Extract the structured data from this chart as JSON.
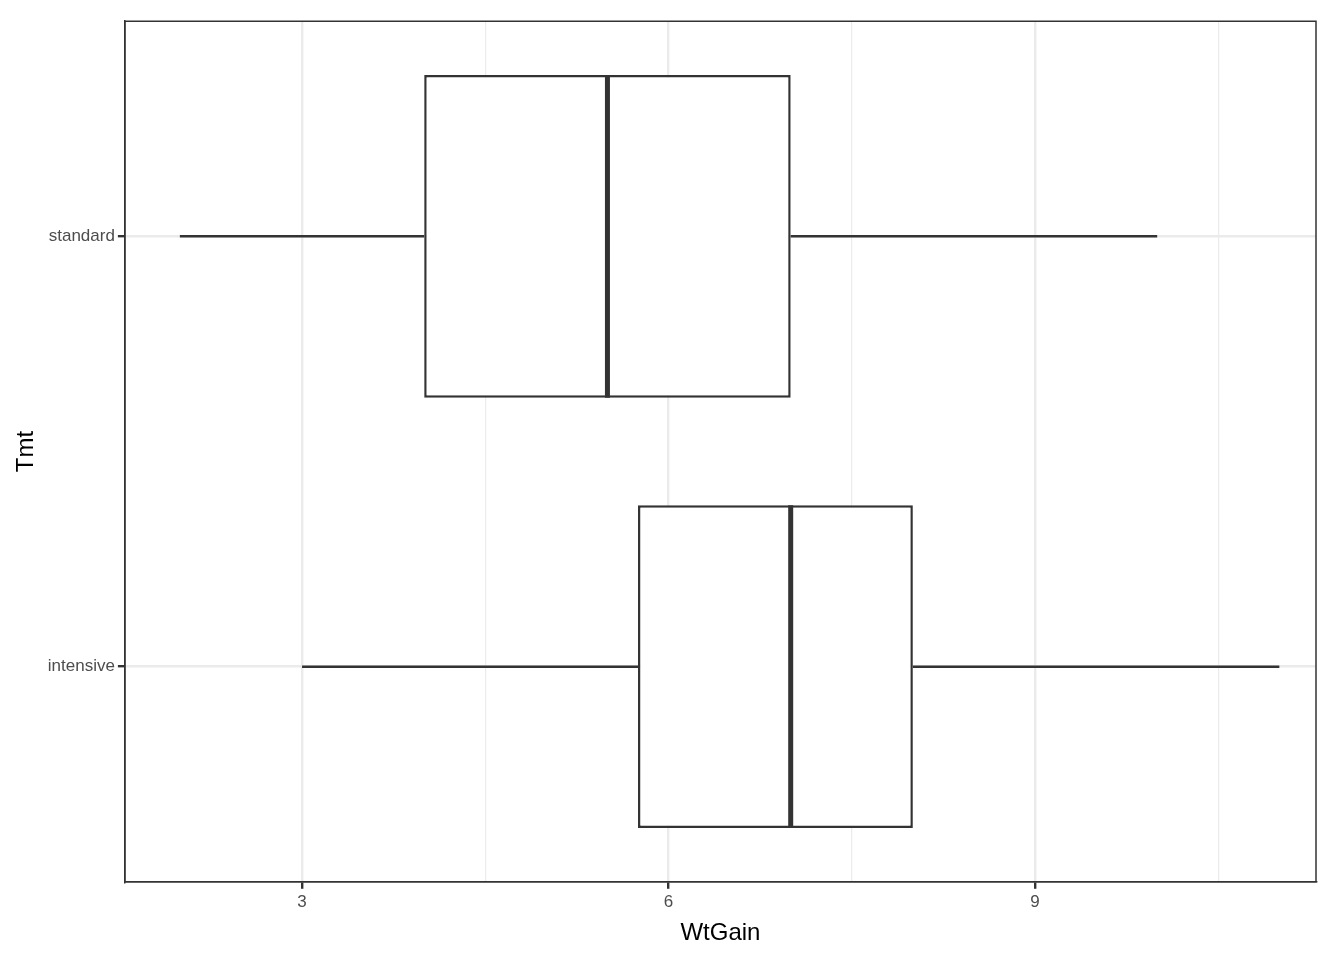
{
  "chart_data": {
    "type": "box",
    "orientation": "horizontal",
    "xlabel": "WtGain",
    "ylabel": "Tmt",
    "categories": [
      "standard",
      "intensive"
    ],
    "boxes": [
      {
        "low": 2,
        "q1": 4,
        "median": 5.5,
        "q3": 7,
        "high": 10
      },
      {
        "low": 3,
        "q1": 5.75,
        "median": 7,
        "q3": 8,
        "high": 11
      }
    ],
    "color": "#333333",
    "xlim": [
      1.55,
      11.3
    ],
    "xticks": [
      3,
      {
        "value": 4.5,
        "label": null
      },
      6,
      {
        "value": 7.5,
        "label": null
      },
      9,
      {
        "value": 10.5,
        "label": null
      }
    ],
    "grid": true,
    "legend": false
  }
}
